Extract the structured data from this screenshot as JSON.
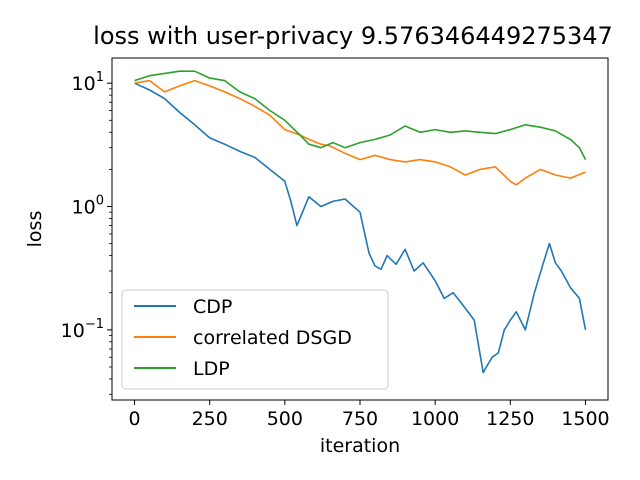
{
  "chart_data": {
    "type": "line",
    "title": "loss with user-privacy  9.576346449275347",
    "xlabel": "iteration",
    "ylabel": "loss",
    "yscale": "log",
    "xlim": [
      -75,
      1575
    ],
    "ylim": [
      0.027,
      16
    ],
    "xticks": [
      0,
      250,
      500,
      750,
      1000,
      1250,
      1500
    ],
    "yticks": [
      {
        "value": 10,
        "base": "10",
        "exp": "1"
      },
      {
        "value": 1,
        "base": "10",
        "exp": "0"
      },
      {
        "value": 0.1,
        "base": "10",
        "exp": "−1"
      }
    ],
    "grid": false,
    "legend": "lower-left",
    "series": [
      {
        "name": "CDP",
        "color": "#1f77b4",
        "x": [
          0,
          50,
          100,
          150,
          200,
          250,
          300,
          350,
          400,
          450,
          500,
          520,
          540,
          580,
          620,
          660,
          700,
          750,
          780,
          800,
          820,
          840,
          870,
          900,
          930,
          960,
          1000,
          1030,
          1060,
          1100,
          1130,
          1160,
          1170,
          1190,
          1210,
          1230,
          1250,
          1270,
          1300,
          1330,
          1360,
          1380,
          1400,
          1420,
          1450,
          1480,
          1500
        ],
        "y": [
          10,
          8.8,
          7.5,
          5.8,
          4.6,
          3.6,
          3.2,
          2.8,
          2.5,
          2.0,
          1.6,
          1.1,
          0.7,
          1.2,
          1.0,
          1.1,
          1.15,
          0.9,
          0.42,
          0.33,
          0.31,
          0.4,
          0.34,
          0.45,
          0.3,
          0.35,
          0.25,
          0.18,
          0.2,
          0.15,
          0.12,
          0.045,
          0.05,
          0.06,
          0.065,
          0.1,
          0.12,
          0.14,
          0.1,
          0.2,
          0.35,
          0.5,
          0.35,
          0.3,
          0.22,
          0.18,
          0.1
        ]
      },
      {
        "name": "correlated DSGD",
        "color": "#ff7f0e",
        "x": [
          0,
          50,
          100,
          150,
          200,
          250,
          300,
          350,
          400,
          450,
          500,
          550,
          580,
          620,
          650,
          700,
          750,
          800,
          850,
          900,
          950,
          1000,
          1050,
          1100,
          1150,
          1200,
          1250,
          1270,
          1300,
          1350,
          1400,
          1450,
          1500
        ],
        "y": [
          10,
          10.5,
          8.5,
          9.5,
          10.5,
          9.5,
          8.5,
          7.5,
          6.5,
          5.5,
          4.2,
          3.8,
          3.5,
          3.2,
          3.1,
          2.7,
          2.4,
          2.6,
          2.4,
          2.3,
          2.4,
          2.3,
          2.1,
          1.8,
          2.0,
          2.1,
          1.6,
          1.5,
          1.7,
          2.0,
          1.8,
          1.7,
          1.9
        ]
      },
      {
        "name": "LDP",
        "color": "#2ca02c",
        "x": [
          0,
          50,
          100,
          150,
          200,
          250,
          300,
          350,
          400,
          450,
          500,
          550,
          580,
          620,
          660,
          700,
          750,
          800,
          850,
          900,
          950,
          1000,
          1050,
          1100,
          1150,
          1200,
          1250,
          1300,
          1350,
          1400,
          1450,
          1480,
          1500
        ],
        "y": [
          10.5,
          11.5,
          12,
          12.5,
          12.5,
          11,
          10.5,
          8.5,
          7.5,
          6,
          5,
          3.8,
          3.2,
          3.0,
          3.3,
          3.0,
          3.3,
          3.5,
          3.8,
          4.5,
          4.0,
          4.2,
          4.0,
          4.1,
          4.0,
          3.9,
          4.2,
          4.6,
          4.4,
          4.1,
          3.5,
          3.0,
          2.4
        ]
      }
    ]
  }
}
